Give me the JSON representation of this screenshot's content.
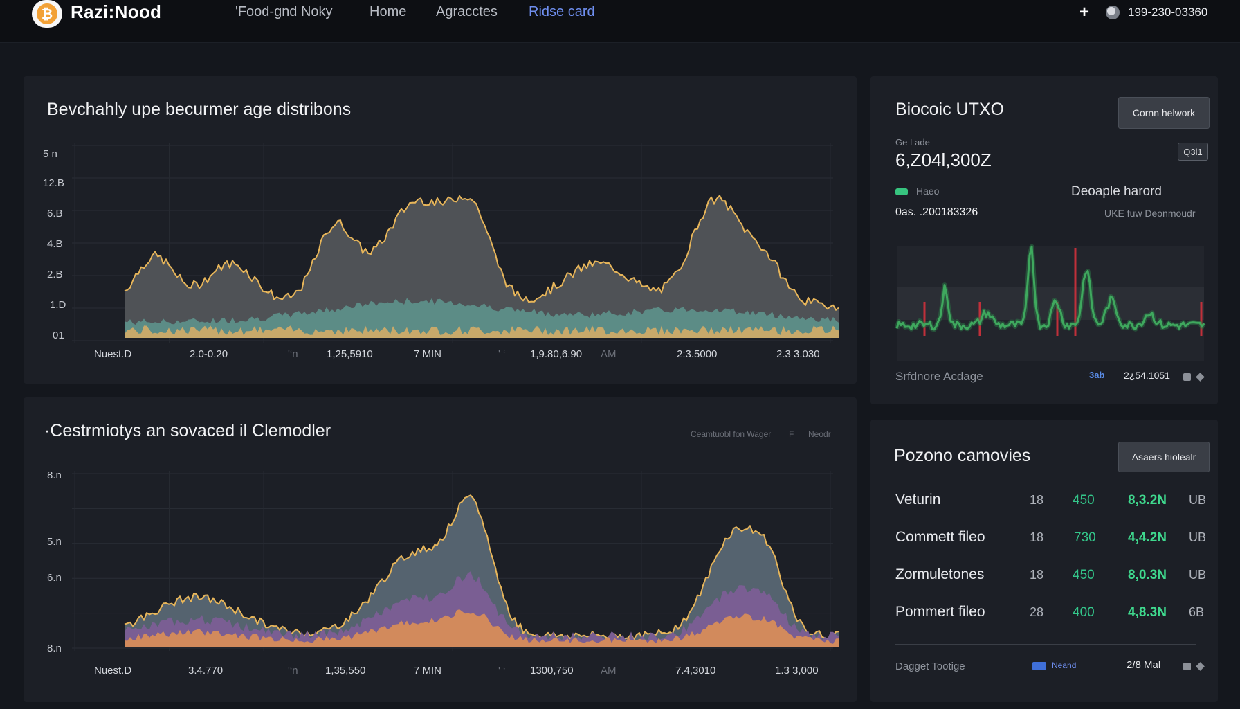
{
  "header": {
    "brand": "Razi:Nood",
    "logo_glyph": "₿",
    "nav": [
      "'Food-gnd Noky",
      "Home",
      "Agracctes",
      "Ridse card"
    ],
    "active_nav": "Ridse card",
    "phone": "199-230-03360"
  },
  "panel1": {
    "title": "Bevchahly upe becurmer age distribons",
    "y_ticks": [
      "5 n",
      "12.B",
      "6.B",
      "4.B",
      "2.B",
      "1.D",
      "01"
    ],
    "x_ticks": [
      "Nuest.D",
      "2.0-0.20",
      "'‘n",
      "1,25,5910",
      "7 MIN",
      "' ‘",
      "1,9.80,6.90",
      "AM",
      "2:3.5000",
      "2.3 3.030"
    ]
  },
  "panel2": {
    "title": "·Cestrmiotys an sovaced il Clemodler",
    "legend_text": "Ceamtuobl fon Wager",
    "legend_box": "F",
    "legend_extra": "Neodr",
    "y_ticks": [
      "8.n",
      "5.n",
      "6.n",
      "8.n"
    ],
    "x_ticks": [
      "Nuest.D",
      "3.4.770",
      "'‘n",
      "1,35,550",
      "7 MIN",
      "' ‘",
      "1300,750",
      "AM",
      "7.4,3010",
      "1.3 3,000"
    ]
  },
  "side1": {
    "title": "Biocoic UTXO",
    "button": "Cornn helwork",
    "sub_label": "Ge Lade",
    "big_value": "6,Z04l,300Z",
    "tag": "Q3l1",
    "legend_label": "Haeo",
    "legend_color": "#37c47f",
    "right_label": "Deoaple harord",
    "small_value": "0as. .200183326",
    "right_sub": "UKE fuw Deonmoudr",
    "footer_label": "Srfdnore Acdage",
    "footer_badge": "3ab",
    "footer_value": "2¿54.1051"
  },
  "side2": {
    "title": "Pozono camovies",
    "button": "Asaers hiolealr",
    "rows": [
      {
        "label": "Veturin",
        "num": "18",
        "green": "450",
        "value": "8,3.2N",
        "unit": "UB"
      },
      {
        "label": "Commett fileo",
        "num": "18",
        "green": "730",
        "value": "4,4.2N",
        "unit": "UB"
      },
      {
        "label": "Zormuletones",
        "num": "18",
        "green": "450",
        "value": "8,0.3N",
        "unit": "UB"
      },
      {
        "label": "Pommert fileo",
        "num": "28",
        "green": "400",
        "value": "4,8.3N",
        "unit": "6B"
      }
    ],
    "footer_label": "Dagget Tootige",
    "footer_badge": "Neand",
    "footer_value": "2/8 Mal"
  },
  "colors": {
    "gold": "#e8b65a",
    "green_line": "#3fa85e",
    "red_spike": "#c0303a",
    "accent_nav": "#6f8ff0",
    "value_green": "#3fd98e"
  }
}
